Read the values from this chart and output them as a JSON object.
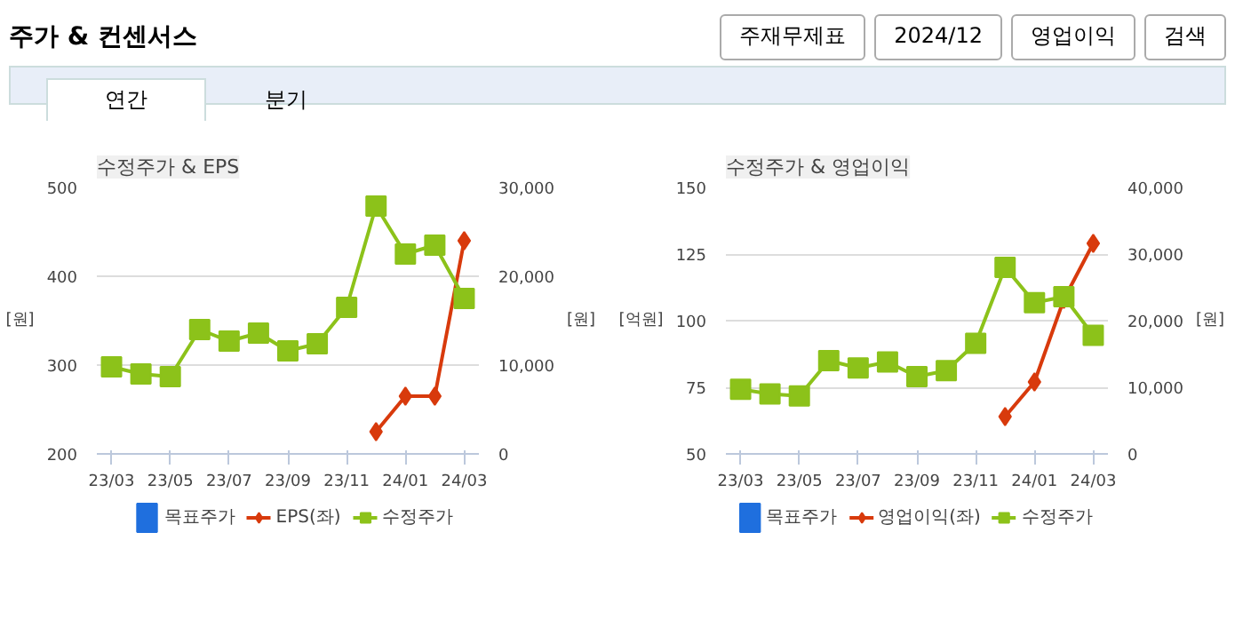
{
  "chart_data": [
    {
      "type": "other",
      "title": "주가 & 컨센서스",
      "annotations": [
        "주재무제표",
        "2024/12",
        "영업이익",
        "검색",
        "연간",
        "분기"
      ]
    },
    {
      "type": "line",
      "title": "수정주가 & EPS",
      "ylabel": "[원]",
      "y2label": "[원]",
      "categories": [
        "23/03",
        null,
        "23/05",
        null,
        "23/07",
        null,
        "23/09",
        null,
        "23/11",
        null,
        "24/01",
        null,
        "24/03"
      ],
      "ylim": [
        200,
        500
      ],
      "yticks": [
        200,
        300,
        400,
        500
      ],
      "y2lim": [
        0,
        30000
      ],
      "y2ticks": [
        0,
        {
          "value": 10000,
          "label": "10,000"
        },
        {
          "value": 20000,
          "label": "20,000"
        },
        {
          "value": 30000,
          "label": "30,000"
        }
      ],
      "grid": "y",
      "legend": "bottom",
      "series": [
        {
          "name": "목표주가",
          "type": "bar",
          "color": "#1f6fde",
          "values": [
            null,
            null,
            null,
            null,
            null,
            null,
            null,
            null,
            null,
            null,
            null,
            null,
            null
          ]
        },
        {
          "name": "EPS(좌)",
          "type": "line",
          "marker": "diamond",
          "color": "#d83a0c",
          "values": [
            null,
            null,
            null,
            null,
            null,
            null,
            null,
            null,
            null,
            225,
            265,
            265,
            440
          ]
        },
        {
          "name": "수정주가",
          "type": "line",
          "marker": "square",
          "axis": "y2",
          "color": "#8cc21a",
          "values": [
            9800,
            9000,
            8700,
            14000,
            12700,
            13600,
            11600,
            12400,
            16500,
            27900,
            22500,
            23500,
            17500
          ]
        }
      ]
    },
    {
      "type": "line",
      "title": "수정주가 & 영업이익",
      "ylabel": "[억원]",
      "y2label": "[원]",
      "categories": [
        "23/03",
        null,
        "23/05",
        null,
        "23/07",
        null,
        "23/09",
        null,
        "23/11",
        null,
        "24/01",
        null,
        "24/03"
      ],
      "ylim": [
        50,
        150
      ],
      "yticks": [
        50,
        75,
        100,
        125,
        150
      ],
      "y2lim": [
        0,
        40000
      ],
      "y2ticks": [
        0,
        {
          "value": 10000,
          "label": "10,000"
        },
        {
          "value": 20000,
          "label": "20,000"
        },
        {
          "value": 30000,
          "label": "30,000"
        },
        {
          "value": 40000,
          "label": "40,000"
        }
      ],
      "grid": "y",
      "legend": "bottom",
      "series": [
        {
          "name": "목표주가",
          "type": "bar",
          "color": "#1f6fde",
          "values": [
            null,
            null,
            null,
            null,
            null,
            null,
            null,
            null,
            null,
            null,
            null,
            null,
            null
          ]
        },
        {
          "name": "영업이익(좌)",
          "type": "line",
          "marker": "diamond",
          "color": "#d83a0c",
          "values": [
            null,
            null,
            null,
            null,
            null,
            null,
            null,
            null,
            null,
            64,
            77,
            108,
            129
          ]
        },
        {
          "name": "수정주가",
          "type": "line",
          "marker": "square",
          "axis": "y2",
          "color": "#8cc21a",
          "values": [
            9700,
            9000,
            8700,
            14000,
            12900,
            13800,
            11600,
            12500,
            16600,
            28000,
            22700,
            23600,
            17800
          ]
        }
      ]
    }
  ]
}
